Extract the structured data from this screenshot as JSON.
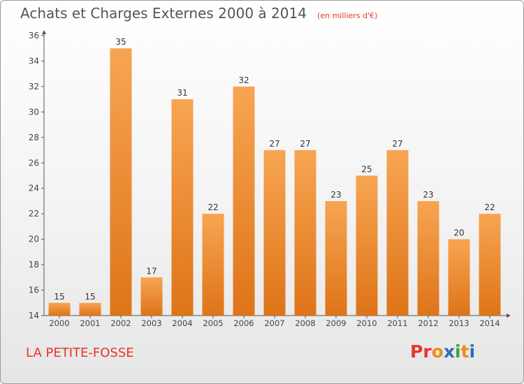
{
  "title": "Achats et Charges Externes 2000 à 2014",
  "subtitle": "(en milliers d'€)",
  "place": "LA PETITE-FOSSE",
  "logo": {
    "text": "Proxiti",
    "letters": [
      {
        "ch": "P",
        "color": "#e8352e"
      },
      {
        "ch": "r",
        "color": "#e8352e"
      },
      {
        "ch": "o",
        "color": "#f08a1c"
      },
      {
        "ch": "x",
        "color": "#2a6fb8"
      },
      {
        "ch": "i",
        "color": "#3aa63a"
      },
      {
        "ch": "t",
        "color": "#f08a1c"
      },
      {
        "ch": "i",
        "color": "#2a6fb8"
      }
    ]
  },
  "colors": {
    "bar_light": "#f7a552",
    "bar_dark": "#de7418",
    "axis": "#555555",
    "grid": "#cccccc"
  },
  "chart_data": {
    "type": "bar",
    "categories": [
      "2000",
      "2001",
      "2002",
      "2003",
      "2004",
      "2005",
      "2006",
      "2007",
      "2008",
      "2009",
      "2010",
      "2011",
      "2012",
      "2013",
      "2014"
    ],
    "values": [
      15,
      15,
      35,
      17,
      31,
      22,
      32,
      27,
      27,
      23,
      25,
      27,
      23,
      20,
      22
    ],
    "ylim": [
      14,
      36
    ],
    "yticks": [
      14,
      16,
      18,
      20,
      22,
      24,
      26,
      28,
      30,
      32,
      34,
      36
    ],
    "xlabel": "",
    "ylabel": "",
    "grid": false,
    "data_labels": true
  }
}
